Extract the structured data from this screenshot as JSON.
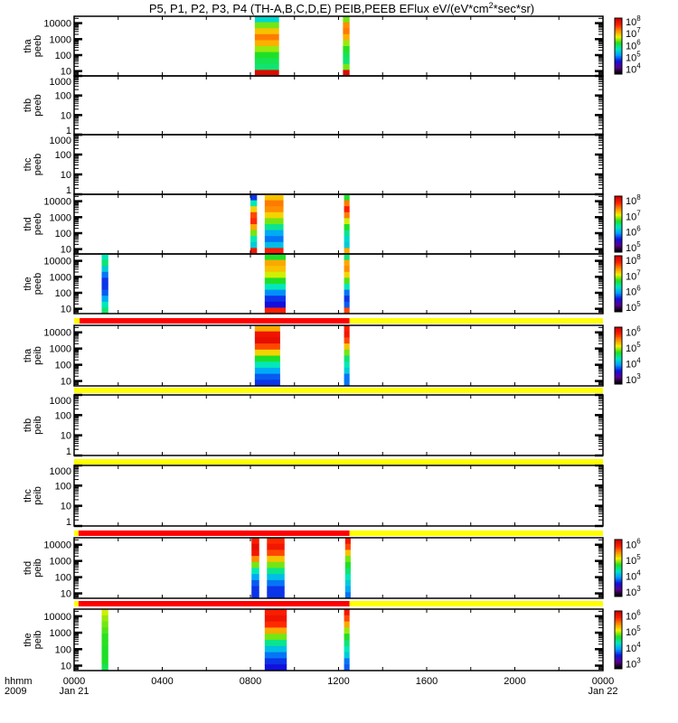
{
  "chart_data": {
    "type": "heatmap",
    "title": {
      "main": "P5, P1, P2, P3, P4 (TH-A,B,C,D,E) PEIB,PEEB EFlux eV/(eV*cm",
      "sup": "2",
      "tail": "*sec*sr)"
    },
    "xaxis": {
      "label_top": "hhmm",
      "label_bottom": "2009",
      "range_hours": [
        0,
        24
      ],
      "major_tick_hours": [
        0,
        2,
        4,
        6,
        8,
        10,
        12,
        14,
        16,
        18,
        20,
        22,
        24
      ],
      "tick_labels": [
        {
          "hour": 0,
          "text": "0000",
          "date": "Jan 21"
        },
        {
          "hour": 4,
          "text": "0400",
          "date": ""
        },
        {
          "hour": 8,
          "text": "0800",
          "date": ""
        },
        {
          "hour": 12,
          "text": "1200",
          "date": ""
        },
        {
          "hour": 16,
          "text": "1600",
          "date": ""
        },
        {
          "hour": 20,
          "text": "2000",
          "date": ""
        },
        {
          "hour": 24,
          "text": "0000",
          "date": "Jan 22"
        }
      ]
    },
    "colormap_stops": [
      "#000000",
      "#5a0090",
      "#1010e0",
      "#00a0ff",
      "#00e8c0",
      "#20e020",
      "#f0f000",
      "#ff9000",
      "#ff2000",
      "#d00000"
    ],
    "panels": [
      {
        "probe": "tha",
        "product": "peeb",
        "ylim": [
          5,
          27000
        ],
        "yticks": [
          10,
          100,
          1000,
          10000
        ],
        "colorbar": {
          "range_log": [
            3.6,
            8.3
          ],
          "exponents": [
            4,
            5,
            6,
            7,
            8
          ]
        },
        "strips": [
          {
            "t0": 8.2,
            "t1": 9.3,
            "profile": [
              0.42,
              0.6,
              0.72,
              0.8,
              0.74,
              0.62,
              0.55,
              0.52,
              0.5,
              0.97
            ]
          },
          {
            "t0": 12.2,
            "t1": 12.5,
            "profile": [
              0.6,
              0.78,
              0.8,
              0.74,
              0.62,
              0.56,
              0.52,
              0.5,
              0.6,
              0.97
            ]
          }
        ]
      },
      {
        "probe": "thb",
        "product": "peeb",
        "ylim": [
          1,
          1000
        ],
        "yticks": [
          1,
          10,
          100,
          1000
        ],
        "colorbar": null,
        "strips": []
      },
      {
        "probe": "thc",
        "product": "peeb",
        "ylim": [
          1,
          1000
        ],
        "yticks": [
          1,
          10,
          100,
          1000
        ],
        "colorbar": null,
        "strips": []
      },
      {
        "probe": "thd",
        "product": "peeb",
        "ylim": [
          5,
          27000
        ],
        "yticks": [
          10,
          100,
          1000,
          10000
        ],
        "colorbar": {
          "range_log": [
            4.7,
            8.3
          ],
          "exponents": [
            5,
            6,
            7,
            8
          ]
        },
        "strips": [
          {
            "t0": 8.0,
            "t1": 8.3,
            "profile": [
              0.25,
              0.45,
              0.7,
              0.85,
              0.88,
              0.75,
              0.6,
              0.45,
              0.4,
              0.92
            ]
          },
          {
            "t0": 8.65,
            "t1": 9.5,
            "profile": [
              0.72,
              0.8,
              0.78,
              0.7,
              0.6,
              0.48,
              0.35,
              0.3,
              0.38,
              0.9
            ]
          },
          {
            "t0": 12.25,
            "t1": 12.5,
            "profile": [
              0.55,
              0.8,
              0.9,
              0.8,
              0.65,
              0.55,
              0.48,
              0.42,
              0.4,
              0.75
            ]
          }
        ]
      },
      {
        "probe": "the",
        "product": "peeb",
        "ylim": [
          5,
          27000
        ],
        "yticks": [
          10,
          100,
          1000,
          10000
        ],
        "colorbar": {
          "range_log": [
            4.7,
            8.3
          ],
          "exponents": [
            5,
            6,
            7,
            8
          ]
        },
        "strips": [
          {
            "t0": 1.25,
            "t1": 1.55,
            "profile": [
              0.45,
              0.5,
              0.4,
              0.3,
              0.25,
              0.25,
              0.28,
              0.35,
              0.45,
              0.5
            ]
          },
          {
            "t0": 8.65,
            "t1": 9.6,
            "profile": [
              0.55,
              0.75,
              0.72,
              0.65,
              0.55,
              0.45,
              0.32,
              0.25,
              0.22,
              0.9
            ]
          },
          {
            "t0": 12.25,
            "t1": 12.5,
            "profile": [
              0.5,
              0.75,
              0.78,
              0.7,
              0.58,
              0.45,
              0.3,
              0.25,
              0.28,
              0.85
            ]
          }
        ]
      },
      {
        "probe": "tha",
        "product": "peib",
        "ylim": [
          5,
          27000
        ],
        "yticks": [
          10,
          100,
          1000,
          10000
        ],
        "colorbar": {
          "range_log": [
            2.7,
            6.3
          ],
          "exponents": [
            3,
            4,
            5,
            6
          ]
        },
        "strips": [
          {
            "t0": 8.2,
            "t1": 9.35,
            "profile": [
              0.75,
              0.93,
              0.95,
              0.85,
              0.7,
              0.55,
              0.45,
              0.35,
              0.28,
              0.25
            ]
          },
          {
            "t0": 12.25,
            "t1": 12.5,
            "profile": [
              0.9,
              0.92,
              0.85,
              0.72,
              0.6,
              0.5,
              0.45,
              0.4,
              0.3,
              0.3
            ]
          }
        ]
      },
      {
        "probe": "thb",
        "product": "peib",
        "ylim": [
          1,
          1000
        ],
        "yticks": [
          1,
          10,
          100,
          1000
        ],
        "colorbar": null,
        "strips": []
      },
      {
        "probe": "thc",
        "product": "peib",
        "ylim": [
          1,
          1000
        ],
        "yticks": [
          1,
          10,
          100,
          1000
        ],
        "colorbar": null,
        "strips": []
      },
      {
        "probe": "thd",
        "product": "peib",
        "ylim": [
          5,
          27000
        ],
        "yticks": [
          10,
          100,
          1000,
          10000
        ],
        "colorbar": {
          "range_log": [
            2.7,
            6.3
          ],
          "exponents": [
            3,
            4,
            5,
            6
          ]
        },
        "strips": [
          {
            "t0": 8.05,
            "t1": 8.4,
            "profile": [
              0.9,
              0.95,
              0.92,
              0.78,
              0.6,
              0.45,
              0.35,
              0.28,
              0.25,
              0.25
            ]
          },
          {
            "t0": 8.75,
            "t1": 9.55,
            "profile": [
              0.88,
              0.92,
              0.85,
              0.72,
              0.6,
              0.48,
              0.38,
              0.3,
              0.25,
              0.25
            ]
          },
          {
            "t0": 12.3,
            "t1": 12.55,
            "profile": [
              0.92,
              0.85,
              0.72,
              0.6,
              0.55,
              0.5,
              0.45,
              0.4,
              0.35,
              0.3
            ]
          }
        ]
      },
      {
        "probe": "the",
        "product": "peib",
        "ylim": [
          5,
          27000
        ],
        "yticks": [
          10,
          100,
          1000,
          10000
        ],
        "colorbar": {
          "range_log": [
            2.7,
            6.3
          ],
          "exponents": [
            3,
            4,
            5,
            6
          ]
        },
        "strips": [
          {
            "t0": 1.25,
            "t1": 1.55,
            "profile": [
              0.65,
              0.62,
              0.6,
              0.58,
              0.56,
              0.56,
              0.55,
              0.55,
              0.55,
              0.52
            ]
          },
          {
            "t0": 8.65,
            "t1": 9.65,
            "profile": [
              0.9,
              0.93,
              0.88,
              0.75,
              0.6,
              0.48,
              0.38,
              0.3,
              0.25,
              0.22
            ]
          },
          {
            "t0": 12.25,
            "t1": 12.5,
            "profile": [
              0.92,
              0.85,
              0.75,
              0.62,
              0.55,
              0.5,
              0.45,
              0.4,
              0.3,
              0.28
            ]
          }
        ]
      }
    ],
    "mode_bars": [
      {
        "above_panel": 5,
        "segments": [
          {
            "t0": 0,
            "t1": 0.25,
            "color": "#ffff00"
          },
          {
            "t0": 0.25,
            "t1": 12.5,
            "color": "#ff0000"
          },
          {
            "t0": 12.5,
            "t1": 24,
            "color": "#ffff00"
          }
        ]
      },
      {
        "above_panel": 6,
        "segments": [
          {
            "t0": 0,
            "t1": 24,
            "color": "#ffff00"
          }
        ]
      },
      {
        "above_panel": 7,
        "segments": [
          {
            "t0": 0,
            "t1": 24,
            "color": "#ffff00"
          }
        ]
      },
      {
        "above_panel": 8,
        "segments": [
          {
            "t0": 0,
            "t1": 0.2,
            "color": "#ffff00"
          },
          {
            "t0": 0.2,
            "t1": 12.5,
            "color": "#ff0000"
          },
          {
            "t0": 12.5,
            "t1": 24,
            "color": "#ffff00"
          }
        ]
      },
      {
        "above_panel": 9,
        "segments": [
          {
            "t0": 0,
            "t1": 0.2,
            "color": "#ffff00"
          },
          {
            "t0": 0.2,
            "t1": 12.5,
            "color": "#ff0000"
          },
          {
            "t0": 12.5,
            "t1": 24,
            "color": "#ffff00"
          }
        ]
      }
    ]
  }
}
